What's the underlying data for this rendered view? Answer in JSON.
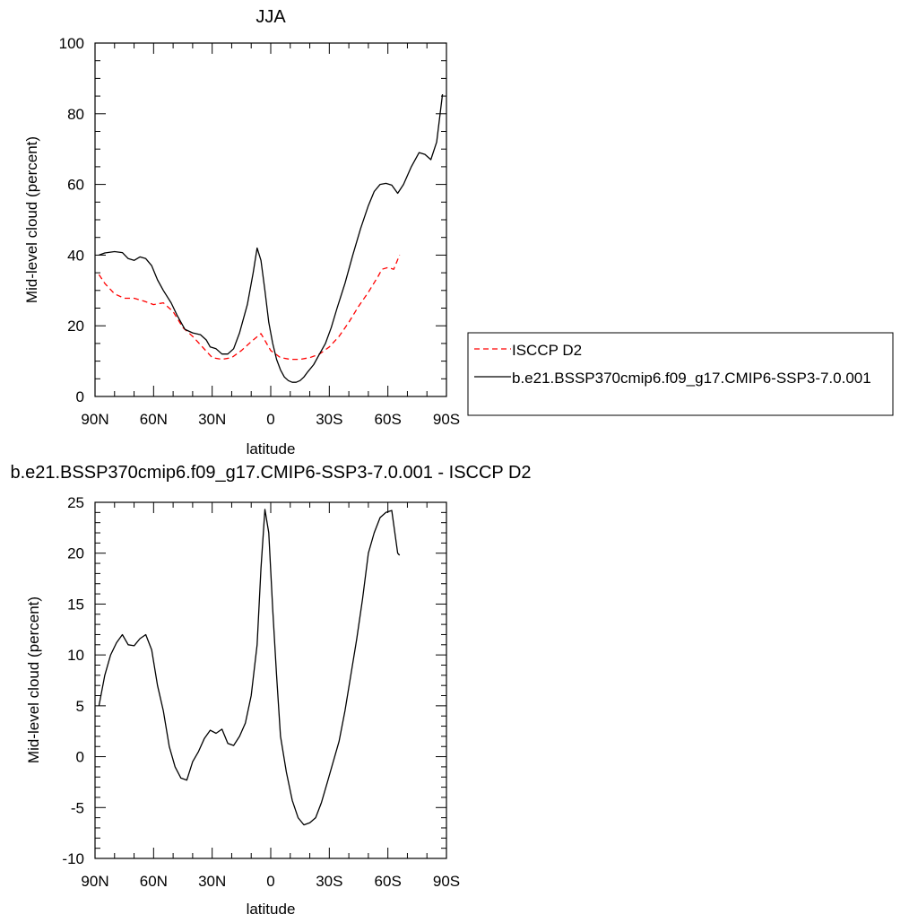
{
  "chart_data": [
    {
      "type": "line",
      "title": "JJA",
      "xlabel": "latitude",
      "ylabel": "Mid-level cloud (percent)",
      "xlim": [
        -90,
        90
      ],
      "ylim": [
        0,
        100
      ],
      "x_ticks": [
        -90,
        -60,
        -30,
        0,
        30,
        60,
        90
      ],
      "x_tick_labels": [
        "90N",
        "60N",
        "30N",
        "0",
        "30S",
        "60S",
        "90S"
      ],
      "y_ticks": [
        0,
        20,
        40,
        60,
        80,
        100
      ],
      "y_tick_labels": [
        "0",
        "20",
        "40",
        "60",
        "80",
        "100"
      ],
      "legend": "right",
      "series": [
        {
          "name": "ISCCP D2",
          "color": "#ff0000",
          "dash": "dashed",
          "x": [
            -88,
            -85,
            -80,
            -75,
            -70,
            -65,
            -60,
            -55,
            -50,
            -45,
            -40,
            -35,
            -30,
            -25,
            -20,
            -15,
            -10,
            -5,
            0,
            5,
            10,
            15,
            20,
            25,
            30,
            35,
            40,
            45,
            50,
            55,
            57,
            60,
            63,
            66
          ],
          "y": [
            34.5,
            32,
            29,
            27.8,
            27.8,
            27,
            26,
            26.5,
            24,
            19.5,
            17,
            14,
            11,
            10.5,
            11,
            13,
            15.5,
            17.8,
            13,
            11,
            10.5,
            10.5,
            11,
            12,
            14,
            17,
            21,
            25.5,
            29.5,
            34,
            36,
            36.5,
            36,
            40
          ]
        },
        {
          "name": "b.e21.BSSP370cmip6.f09_g17.CMIP6-SSP3-7.0.001",
          "color": "#000000",
          "dash": "solid",
          "x": [
            -88,
            -85,
            -80,
            -76,
            -73,
            -70,
            -67,
            -64,
            -61,
            -58,
            -55,
            -51,
            -48,
            -44,
            -40,
            -36,
            -33,
            -31,
            -28,
            -25,
            -22,
            -19,
            -16,
            -12,
            -9,
            -7,
            -5,
            -3,
            -1,
            1,
            3,
            5,
            7,
            9,
            11,
            13,
            15,
            17,
            19,
            22,
            25,
            28,
            31,
            34,
            38,
            42,
            46,
            50,
            53,
            56,
            59,
            62,
            65,
            68,
            72,
            76,
            79,
            82,
            85,
            88
          ],
          "y": [
            40,
            40.6,
            41,
            40.7,
            39,
            38.5,
            39.5,
            39,
            37,
            33,
            30,
            26.5,
            23,
            19,
            18,
            17.5,
            16,
            14,
            13.5,
            12,
            12,
            13.5,
            18,
            26,
            35,
            42,
            38.5,
            30,
            21,
            15,
            10.5,
            7.5,
            5.5,
            4.5,
            4,
            4,
            4.5,
            5.5,
            7,
            9,
            12,
            15,
            19.5,
            25,
            32,
            40,
            47.5,
            54,
            58,
            60,
            60.3,
            59.8,
            57.5,
            60,
            65,
            69,
            68.5,
            67,
            72,
            85.5
          ]
        }
      ]
    },
    {
      "type": "line",
      "title": "b.e21.BSSP370cmip6.f09_g17.CMIP6-SSP3-7.0.001 - ISCCP D2",
      "xlabel": "latitude",
      "ylabel": "Mid-level cloud (percent)",
      "xlim": [
        -90,
        90
      ],
      "ylim": [
        -10,
        25
      ],
      "x_ticks": [
        -90,
        -60,
        -30,
        0,
        30,
        60,
        90
      ],
      "x_tick_labels": [
        "90N",
        "60N",
        "30N",
        "0",
        "30S",
        "60S",
        "90S"
      ],
      "y_ticks": [
        -10,
        -5,
        0,
        5,
        10,
        15,
        20,
        25
      ],
      "y_tick_labels": [
        "-10",
        "-5",
        "0",
        "5",
        "10",
        "15",
        "20",
        "25"
      ],
      "series": [
        {
          "color": "#000000",
          "dash": "solid",
          "x": [
            -88,
            -85,
            -82,
            -79,
            -76,
            -73,
            -70,
            -67,
            -64,
            -61,
            -58,
            -55,
            -52,
            -49,
            -46,
            -43,
            -40,
            -37,
            -34,
            -31,
            -28,
            -25,
            -22,
            -19,
            -16,
            -13,
            -10,
            -7,
            -5,
            -3,
            -1,
            1,
            3,
            5,
            8,
            11,
            14,
            17,
            20,
            23,
            26,
            29,
            32,
            35,
            38,
            41,
            44,
            47,
            50,
            53,
            56,
            59,
            62,
            65,
            66
          ],
          "y": [
            5,
            8,
            10,
            11.2,
            12,
            11,
            10.9,
            11.6,
            12,
            10.5,
            7,
            4.5,
            1,
            -1,
            -2.1,
            -2.3,
            -0.5,
            0.5,
            1.8,
            2.6,
            2.3,
            2.7,
            1.3,
            1.1,
            2,
            3.3,
            6,
            11,
            18.5,
            24.3,
            22,
            14.5,
            8,
            2,
            -1.5,
            -4.3,
            -6,
            -6.7,
            -6.5,
            -6,
            -4.5,
            -2.5,
            -0.5,
            1.5,
            4.5,
            8,
            11.5,
            15.5,
            20,
            22,
            23.5,
            24,
            24.2,
            20,
            19.8
          ]
        }
      ]
    }
  ]
}
